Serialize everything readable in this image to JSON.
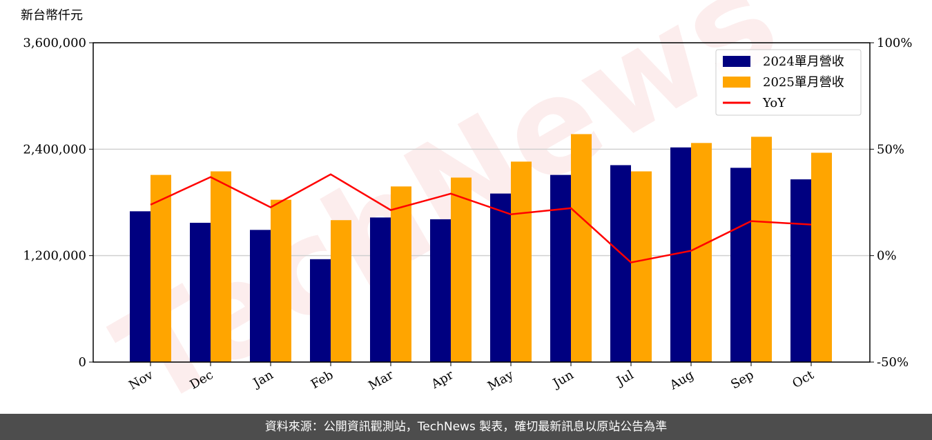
{
  "chart_data": {
    "type": "bar",
    "unit_label": "新台幣仟元",
    "watermark": "TechNews",
    "categories": [
      "Nov",
      "Dec",
      "Jan",
      "Feb",
      "Mar",
      "Apr",
      "May",
      "Jun",
      "Jul",
      "Aug",
      "Sep",
      "Oct"
    ],
    "series": [
      {
        "name": "2024單月營收",
        "color": "#000080",
        "values": [
          1700000,
          1570000,
          1490000,
          1160000,
          1630000,
          1610000,
          1900000,
          2110000,
          2220000,
          2420000,
          2190000,
          2060000
        ]
      },
      {
        "name": "2025單月營收",
        "color": "#ffa500",
        "values": [
          2110000,
          2150000,
          1830000,
          1600000,
          1980000,
          2080000,
          2260000,
          2570000,
          2150000,
          2470000,
          2540000,
          2360000
        ]
      },
      {
        "name": "YoY",
        "color": "#ff0000",
        "type": "line",
        "axis": "y2",
        "values": [
          23.9,
          36.9,
          22.7,
          38.2,
          21.4,
          29.1,
          19.4,
          22.3,
          -3.2,
          2.3,
          16.2,
          14.6
        ]
      }
    ],
    "ylim": [
      0,
      3600000
    ],
    "yticks": [
      0,
      {
        "value": 1200000,
        "label": "1,200,000"
      },
      {
        "value": 2400000,
        "label": "2,400,000"
      },
      {
        "value": 3600000,
        "label": "3,600,000"
      }
    ],
    "y2lim": [
      -50,
      100
    ],
    "y2ticks": [
      {
        "value": -50,
        "label": "-50%"
      },
      {
        "value": 0,
        "label": "0%"
      },
      {
        "value": 50,
        "label": "50%"
      },
      {
        "value": 100,
        "label": "100%"
      }
    ],
    "grid": true,
    "legend": "upper right",
    "footer": "資料來源：公開資訊觀測站，TechNews 製表，確切最新訊息以原站公告為準"
  }
}
